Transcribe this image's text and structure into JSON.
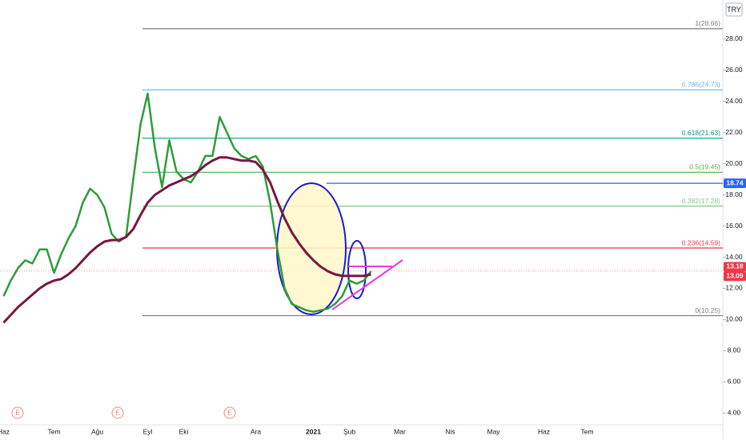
{
  "chart_data": {
    "type": "line",
    "currency": "TRY",
    "categories": [
      "Haz",
      null,
      null,
      null,
      null,
      null,
      null,
      "Tem",
      null,
      null,
      null,
      null,
      null,
      "Ağu",
      null,
      null,
      null,
      null,
      null,
      null,
      "Eyl",
      null,
      null,
      null,
      null,
      "Eki",
      null,
      null,
      null,
      null,
      null,
      null,
      null,
      null,
      null,
      "Ara",
      null,
      null,
      null,
      null,
      null,
      null,
      null,
      "2021",
      null,
      null,
      null,
      null,
      "Şub",
      null,
      null,
      null,
      null,
      null,
      null,
      "Mar",
      null,
      null,
      null,
      null,
      null,
      null,
      "Nis",
      null,
      null,
      null,
      null,
      null,
      "May",
      null,
      null,
      null,
      null,
      null,
      null,
      "Haz",
      null,
      null,
      null,
      null,
      null,
      "Tem",
      null,
      null,
      null,
      null,
      null,
      null,
      null,
      null,
      null,
      null,
      null,
      null,
      null,
      null,
      null,
      null,
      null,
      null
    ],
    "series": [
      {
        "color": "#2e9c3a",
        "values": [
          11.5,
          12.5,
          13.3,
          13.8,
          13.6,
          14.5,
          14.5,
          13.0,
          14.2,
          15.2,
          16.0,
          17.5,
          18.4,
          18.0,
          17.2,
          15.5,
          15.0,
          15.3,
          19.0,
          22.5,
          24.5,
          21.0,
          18.5,
          21.5,
          19.5,
          19.0,
          18.8,
          19.5,
          20.5,
          20.5,
          23.0,
          22.0,
          21.0,
          20.5,
          20.3,
          20.5,
          19.8,
          17.5,
          14.5,
          12.0,
          11.0,
          10.8,
          10.6,
          10.5,
          10.6,
          10.7,
          11.0,
          11.5,
          12.5,
          12.3,
          12.5,
          13.1,
          null,
          null,
          null,
          null,
          null,
          null,
          null,
          null,
          null,
          null,
          null,
          null,
          null,
          null,
          null,
          null,
          null,
          null,
          null,
          null,
          null,
          null,
          null,
          null,
          null,
          null,
          null,
          null,
          null,
          null,
          null,
          null,
          null,
          null,
          null,
          null,
          null,
          null,
          null,
          null,
          null,
          null,
          null,
          null,
          null,
          null,
          null,
          null
        ]
      },
      {
        "color": "#7b1540",
        "values": [
          9.8,
          10.3,
          10.8,
          11.2,
          11.6,
          12.0,
          12.3,
          12.5,
          12.6,
          12.9,
          13.3,
          13.8,
          14.3,
          14.7,
          15.0,
          15.1,
          15.1,
          15.3,
          15.8,
          16.7,
          17.5,
          18.0,
          18.3,
          18.6,
          18.8,
          19.0,
          19.2,
          19.5,
          19.9,
          20.2,
          20.4,
          20.4,
          20.3,
          20.2,
          20.2,
          20.1,
          19.6,
          18.8,
          17.6,
          16.5,
          15.6,
          14.9,
          14.3,
          13.8,
          13.4,
          13.1,
          12.9,
          12.8,
          12.8,
          12.8,
          12.8,
          12.9,
          null,
          null,
          null,
          null,
          null,
          null,
          null,
          null,
          null,
          null,
          null,
          null,
          null,
          null,
          null,
          null,
          null,
          null,
          null,
          null,
          null,
          null,
          null,
          null,
          null,
          null,
          null,
          null,
          null,
          null,
          null,
          null,
          null,
          null,
          null,
          null,
          null,
          null,
          null,
          null,
          null,
          null,
          null,
          null,
          null,
          null,
          null,
          null
        ]
      }
    ],
    "ylim": [
      3.3,
      30.5
    ],
    "yticks": [
      {
        "value": 4,
        "label": "4.00"
      },
      {
        "value": 6,
        "label": "6.00"
      },
      {
        "value": 8,
        "label": "8.00"
      },
      {
        "value": 10,
        "label": "10.00"
      },
      {
        "value": 12,
        "label": "12.00"
      },
      {
        "value": 14,
        "label": "14.00"
      },
      {
        "value": 16,
        "label": "16.00"
      },
      {
        "value": 18,
        "label": "18.00"
      },
      {
        "value": 20,
        "label": "20.00"
      },
      {
        "value": 22,
        "label": "22.00"
      },
      {
        "value": 24,
        "label": "24.00"
      },
      {
        "value": 26,
        "label": "26.00"
      },
      {
        "value": 28,
        "label": "28.00"
      }
    ],
    "fib_levels": [
      {
        "value": 28.66,
        "label": "1(28.66)",
        "color": "#787b86"
      },
      {
        "value": 24.73,
        "label": "0.786(24.73)",
        "color": "#64b5f6"
      },
      {
        "value": 21.63,
        "label": "0.618(21.63)",
        "color": "#089981"
      },
      {
        "value": 19.45,
        "label": "0.5(19.45)",
        "color": "#4caf50"
      },
      {
        "value": 17.28,
        "label": "0.382(17.28)",
        "color": "#81c784"
      },
      {
        "value": 14.59,
        "label": "0.236(14.59)",
        "color": "#f23645"
      },
      {
        "value": 10.25,
        "label": "0(10.25)",
        "color": "#787b86"
      }
    ],
    "price_labels": [
      {
        "value": 18.74,
        "color": "#2962ff"
      },
      {
        "value": 13.18,
        "color": "#f23645"
      },
      {
        "value": 13.09,
        "color": "#f23645"
      }
    ],
    "events": [
      "E",
      "E",
      "E"
    ]
  }
}
